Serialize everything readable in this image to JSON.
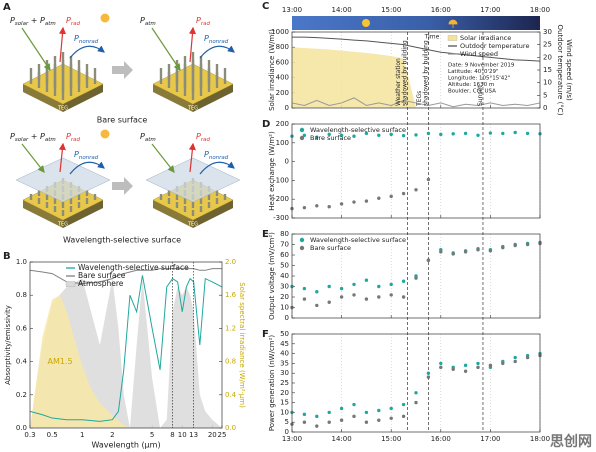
{
  "panel_a": {
    "label": "A",
    "diagrams": [
      {
        "labels": [
          [
            "P",
            "solar",
            " + P",
            "atm"
          ],
          [
            "P",
            "rad"
          ],
          [
            "P",
            "nonrad"
          ]
        ],
        "block": "TEG"
      },
      {
        "labels": [
          [
            "P",
            "atm"
          ],
          [
            "P",
            "rad"
          ],
          [
            "P",
            "nonrad"
          ]
        ],
        "block": "TEG"
      },
      {
        "labels": [
          [
            "P",
            "solar",
            " + P",
            "atm"
          ],
          [
            "P",
            "rad"
          ],
          [
            "P",
            "nonrad"
          ]
        ],
        "block": "TEG"
      },
      {
        "labels": [
          [
            "P",
            "atm"
          ],
          [
            "P",
            "rad"
          ],
          [
            "P",
            "nonrad"
          ]
        ],
        "block": "TEG"
      }
    ],
    "captions": [
      "Bare surface",
      "Wavelength-selective surface"
    ]
  },
  "watermark": "思创网",
  "chart_data": [
    {
      "type": "line",
      "panel_label": "B",
      "xlabel": "Wavelength (μm)",
      "ylabel": "Absorptivity/emissivity",
      "y2labels": [
        "Solar spectral irradiance (W/m²·μm)"
      ],
      "xscale": "log",
      "xlim": [
        0.3,
        25
      ],
      "xticks": [
        0.3,
        0.5,
        1,
        2,
        5,
        8,
        10,
        13,
        20,
        25
      ],
      "ylim": [
        0,
        1
      ],
      "yticks": [
        {
          "value": 0,
          "label": "0.0"
        },
        0.2,
        0.4,
        0.6,
        0.8,
        {
          "value": 1,
          "label": "1.0"
        }
      ],
      "y2lim": [
        0,
        2
      ],
      "y2ticks": [
        {
          "value": 0,
          "label": "0.0"
        },
        0.4,
        0.8,
        1.2,
        1.6,
        {
          "value": 2,
          "label": "2.0"
        }
      ],
      "x_tick_labels": "bottom",
      "legend": "upper center",
      "vlines": [
        8,
        13
      ],
      "x": [
        0.3,
        0.4,
        0.5,
        0.7,
        1,
        1.5,
        2,
        2.3,
        2.6,
        3,
        3.5,
        4,
        5,
        6,
        7,
        8,
        9,
        10,
        11,
        12,
        13,
        15,
        17,
        20,
        25
      ],
      "series": [
        {
          "name": "Wavelength-selective surface",
          "color": "#20a89e",
          "style": "line",
          "values": [
            0.1,
            0.08,
            0.06,
            0.05,
            0.05,
            0.04,
            0.05,
            0.1,
            0.35,
            0.8,
            0.7,
            0.92,
            0.6,
            0.35,
            0.85,
            0.9,
            0.88,
            0.7,
            0.85,
            0.9,
            0.88,
            0.5,
            0.9,
            0.88,
            0.85
          ]
        },
        {
          "name": "Bare surface",
          "color": "#808080",
          "style": "line",
          "values": [
            0.95,
            0.94,
            0.93,
            0.88,
            0.87,
            0.88,
            0.9,
            0.92,
            0.93,
            0.94,
            0.95,
            0.95,
            0.95,
            0.96,
            0.96,
            0.96,
            0.96,
            0.96,
            0.96,
            0.96,
            0.96,
            0.95,
            0.95,
            0.96,
            0.96
          ]
        },
        {
          "name": "Atmosphere",
          "color": "#d9d9d9",
          "style": "area",
          "values": [
            0,
            0.5,
            0.75,
            0.85,
            0.9,
            0.5,
            0.9,
            0.6,
            0.2,
            0,
            0.5,
            0.9,
            0.3,
            0,
            0.05,
            0.7,
            0.85,
            0.8,
            0.85,
            0.8,
            0.7,
            0.2,
            0.1,
            0.05,
            0
          ]
        },
        {
          "annotation": "AM1.5",
          "color": "#f7e7a6",
          "style": "area",
          "axis": "y2",
          "x": [
            0.3,
            0.4,
            0.5,
            0.6,
            0.7,
            0.8,
            1,
            1.2,
            1.5,
            2,
            2.5,
            3
          ],
          "values": [
            0,
            1.1,
            1.55,
            1.6,
            1.4,
            1.15,
            0.75,
            0.5,
            0.3,
            0.15,
            0.05,
            0
          ]
        }
      ]
    },
    {
      "type": "line",
      "panel_label": "C",
      "ylabel": "Solar irradiance (W/m²)",
      "y2labels": [
        "Outdoor temperature (°C)",
        "Wind speed (m/s)"
      ],
      "xlim": [
        13,
        18
      ],
      "xticks": [
        {
          "value": 13,
          "label": "13:00"
        },
        {
          "value": 14,
          "label": "14:00"
        },
        {
          "value": 15,
          "label": "15:00"
        },
        {
          "value": 16,
          "label": "16:00"
        },
        {
          "value": 17,
          "label": "17:00"
        },
        {
          "value": 18,
          "label": "18:00"
        }
      ],
      "ylim": [
        0,
        1000
      ],
      "yticks": [
        0,
        200,
        400,
        600,
        800,
        1000
      ],
      "y2lim": [
        0,
        30
      ],
      "y2ticks": [
        0,
        5,
        10,
        15,
        20,
        25,
        30
      ],
      "x_tick_labels": "top",
      "grid": "x",
      "legend": "upper right",
      "banner_label": "Time",
      "vlines": [
        {
          "x": 15.33,
          "text": [
            "Weather station",
            "shadowed by building"
          ]
        },
        {
          "x": 15.75,
          "text": [
            "TEGs",
            "shadowed by building"
          ]
        },
        {
          "x": 16.85,
          "text": [
            "Sunset"
          ]
        }
      ],
      "info": [
        "Date: 9 November 2019",
        "Latitude: 40°0'29\"",
        "Longitude: 105°15'42\"",
        "Altitude: 1630 m",
        "Boulder, CO, USA"
      ],
      "x": [
        13,
        13.25,
        13.5,
        13.75,
        14,
        14.25,
        14.5,
        14.75,
        15,
        15.25,
        15.5,
        15.75,
        16,
        16.25,
        16.5,
        16.75,
        17,
        17.25,
        17.5,
        17.75,
        18
      ],
      "series": [
        {
          "name": "Solar irradiance",
          "color": "#f5e39b",
          "style": "area",
          "values": [
            800,
            790,
            780,
            770,
            755,
            740,
            725,
            705,
            685,
            650,
            10,
            8,
            5,
            3,
            0,
            0,
            0,
            0,
            0,
            0,
            0
          ]
        },
        {
          "name": "Outdoor temperature",
          "color": "#555555",
          "style": "line",
          "axis": "y2",
          "values": [
            28,
            28,
            27.8,
            27.5,
            27.2,
            26.8,
            26.5,
            26,
            25.5,
            25,
            24,
            23,
            22,
            21.5,
            21,
            20.5,
            20,
            19.5,
            19,
            18.8,
            18.5
          ]
        },
        {
          "name": "Wind speed",
          "color": "#999999",
          "style": "line",
          "axis": "y2",
          "values": [
            2,
            1,
            3,
            1,
            2,
            4,
            1,
            2,
            1,
            3,
            2,
            1,
            2,
            0.5,
            1.5,
            1,
            2,
            1,
            1.5,
            1,
            2
          ]
        }
      ]
    },
    {
      "type": "scatter",
      "panel_label": "D",
      "ylabel": "Heat exchange (W/m²)",
      "xlim": [
        13,
        18
      ],
      "xticks": [
        13,
        14,
        15,
        16,
        17,
        18
      ],
      "ylim": [
        -300,
        200
      ],
      "yticks": [
        -300,
        -200,
        -100,
        0,
        100,
        200
      ],
      "x_tick_labels": "none",
      "grid": "x",
      "legend": "upper left",
      "x": [
        13,
        13.25,
        13.5,
        13.75,
        14,
        14.25,
        14.5,
        14.75,
        15,
        15.25,
        15.5,
        15.75,
        16,
        16.25,
        16.5,
        16.75,
        17,
        17.25,
        17.5,
        17.75,
        18
      ],
      "series": [
        {
          "name": "Wavelength-selective surface",
          "color": "#20a89e",
          "values": [
            135,
            140,
            130,
            145,
            140,
            135,
            150,
            140,
            145,
            138,
            142,
            150,
            145,
            148,
            150,
            140,
            152,
            150,
            155,
            150,
            148
          ]
        },
        {
          "name": "Bare surface",
          "color": "#777777",
          "values": [
            -250,
            -245,
            -235,
            -240,
            -225,
            -215,
            -210,
            -195,
            -185,
            -170,
            -150,
            -95,
            null,
            null,
            null,
            null,
            null,
            null,
            null,
            null,
            null
          ]
        }
      ]
    },
    {
      "type": "scatter",
      "panel_label": "E",
      "ylabel": "Output voltage (mV/cm²)",
      "xlim": [
        13,
        18
      ],
      "xticks": [
        13,
        14,
        15,
        16,
        17,
        18
      ],
      "ylim": [
        0,
        80
      ],
      "yticks": [
        0,
        10,
        20,
        30,
        40,
        50,
        60,
        70,
        80
      ],
      "x_tick_labels": "none",
      "grid": "x",
      "legend": "upper left",
      "x": [
        13,
        13.25,
        13.5,
        13.75,
        14,
        14.25,
        14.5,
        14.75,
        15,
        15.25,
        15.5,
        15.75,
        16,
        16.25,
        16.5,
        16.75,
        17,
        17.25,
        17.5,
        17.75,
        18
      ],
      "series": [
        {
          "name": "Wavelength-selective surface",
          "color": "#20a89e",
          "values": [
            30,
            28,
            25,
            30,
            28,
            32,
            36,
            30,
            32,
            35,
            40,
            55,
            65,
            62,
            64,
            66,
            65,
            68,
            70,
            71,
            72
          ]
        },
        {
          "name": "Bare surface",
          "color": "#777777",
          "values": [
            10,
            18,
            12,
            15,
            20,
            22,
            18,
            20,
            22,
            20,
            38,
            55,
            63,
            61,
            63,
            65,
            64,
            67,
            69,
            70,
            71
          ]
        }
      ]
    },
    {
      "type": "scatter",
      "panel_label": "F",
      "ylabel": "Power generation (nW/cm²)",
      "xlim": [
        13,
        18
      ],
      "xticks": [
        {
          "value": 13,
          "label": "13:00"
        },
        {
          "value": 14,
          "label": "14:00"
        },
        {
          "value": 15,
          "label": "15:00"
        },
        {
          "value": 16,
          "label": "16:00"
        },
        {
          "value": 17,
          "label": "17:00"
        },
        {
          "value": 18,
          "label": "18:00"
        }
      ],
      "ylim": [
        0,
        50
      ],
      "yticks": [
        0,
        5,
        10,
        15,
        20,
        25,
        30,
        35,
        40,
        45,
        50
      ],
      "x_tick_labels": "bottom",
      "grid": "x",
      "x": [
        13,
        13.25,
        13.5,
        13.75,
        14,
        14.25,
        14.5,
        14.75,
        15,
        15.25,
        15.5,
        15.75,
        16,
        16.25,
        16.5,
        16.75,
        17,
        17.25,
        17.5,
        17.75,
        18
      ],
      "series": [
        {
          "color": "#20a89e",
          "values": [
            10,
            9,
            8,
            10,
            12,
            14,
            10,
            11,
            12,
            14,
            20,
            30,
            35,
            33,
            34,
            35,
            33,
            36,
            38,
            39,
            40
          ]
        },
        {
          "color": "#777777",
          "values": [
            4,
            5,
            3,
            5,
            6,
            8,
            5,
            6,
            7,
            8,
            15,
            28,
            33,
            32,
            31,
            33,
            34,
            35,
            36,
            38,
            39
          ]
        }
      ]
    }
  ]
}
